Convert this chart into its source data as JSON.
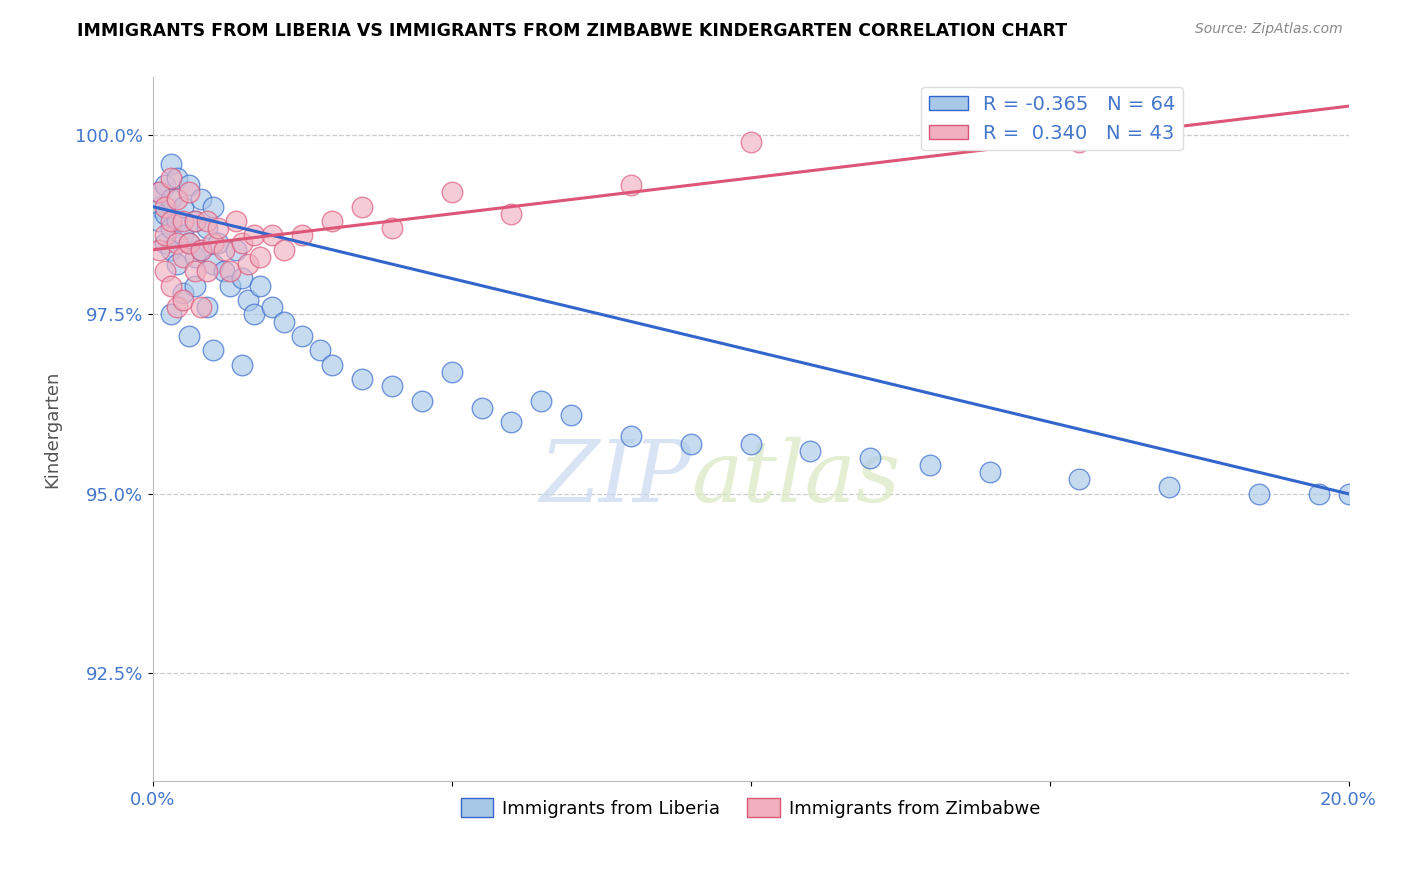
{
  "title": "IMMIGRANTS FROM LIBERIA VS IMMIGRANTS FROM ZIMBABWE KINDERGARTEN CORRELATION CHART",
  "source": "Source: ZipAtlas.com",
  "ylabel": "Kindergarten",
  "xlim": [
    0.0,
    0.2
  ],
  "ylim": [
    0.91,
    1.008
  ],
  "yticks": [
    0.925,
    0.95,
    0.975,
    1.0
  ],
  "yticklabels": [
    "92.5%",
    "95.0%",
    "97.5%",
    "100.0%"
  ],
  "xticks": [
    0.0,
    0.05,
    0.1,
    0.15,
    0.2
  ],
  "xticklabels": [
    "0.0%",
    "",
    "",
    "",
    "20.0%"
  ],
  "legend_r_liberia": "-0.365",
  "legend_n_liberia": "64",
  "legend_r_zimbabwe": "0.340",
  "legend_n_zimbabwe": "43",
  "color_liberia": "#a8c8e8",
  "color_zimbabwe": "#f0b0c0",
  "color_line_liberia": "#3366cc",
  "color_line_zimbabwe": "#dd5577",
  "watermark_zip": "ZIP",
  "watermark_atlas": "atlas",
  "background_color": "#ffffff",
  "grid_color": "#cccccc",
  "liberia_line_x": [
    0.0,
    0.2
  ],
  "liberia_line_y": [
    0.99,
    0.95
  ],
  "zimbabwe_line_x": [
    0.0,
    0.2
  ],
  "zimbabwe_line_y": [
    0.984,
    1.004
  ],
  "liberia_x": [
    0.001,
    0.001,
    0.001,
    0.002,
    0.002,
    0.002,
    0.003,
    0.003,
    0.003,
    0.003,
    0.004,
    0.004,
    0.004,
    0.005,
    0.005,
    0.005,
    0.006,
    0.006,
    0.007,
    0.007,
    0.007,
    0.008,
    0.008,
    0.009,
    0.009,
    0.01,
    0.01,
    0.011,
    0.012,
    0.013,
    0.014,
    0.015,
    0.016,
    0.017,
    0.018,
    0.02,
    0.022,
    0.025,
    0.028,
    0.03,
    0.035,
    0.04,
    0.045,
    0.05,
    0.055,
    0.06,
    0.065,
    0.07,
    0.08,
    0.09,
    0.1,
    0.11,
    0.12,
    0.13,
    0.14,
    0.155,
    0.17,
    0.185,
    0.195,
    0.2,
    0.003,
    0.006,
    0.01,
    0.015
  ],
  "liberia_y": [
    0.99,
    0.988,
    0.992,
    0.989,
    0.985,
    0.993,
    0.987,
    0.991,
    0.984,
    0.996,
    0.988,
    0.982,
    0.994,
    0.986,
    0.99,
    0.978,
    0.985,
    0.993,
    0.983,
    0.988,
    0.979,
    0.984,
    0.991,
    0.987,
    0.976,
    0.982,
    0.99,
    0.985,
    0.981,
    0.979,
    0.984,
    0.98,
    0.977,
    0.975,
    0.979,
    0.976,
    0.974,
    0.972,
    0.97,
    0.968,
    0.966,
    0.965,
    0.963,
    0.967,
    0.962,
    0.96,
    0.963,
    0.961,
    0.958,
    0.957,
    0.957,
    0.956,
    0.955,
    0.954,
    0.953,
    0.952,
    0.951,
    0.95,
    0.95,
    0.95,
    0.975,
    0.972,
    0.97,
    0.968
  ],
  "zimbabwe_x": [
    0.001,
    0.001,
    0.002,
    0.002,
    0.002,
    0.003,
    0.003,
    0.003,
    0.004,
    0.004,
    0.004,
    0.005,
    0.005,
    0.005,
    0.006,
    0.006,
    0.007,
    0.007,
    0.008,
    0.008,
    0.009,
    0.009,
    0.01,
    0.011,
    0.012,
    0.013,
    0.014,
    0.015,
    0.016,
    0.017,
    0.018,
    0.02,
    0.022,
    0.025,
    0.03,
    0.035,
    0.04,
    0.05,
    0.06,
    0.08,
    0.1,
    0.155,
    0.16
  ],
  "zimbabwe_y": [
    0.984,
    0.992,
    0.986,
    0.99,
    0.981,
    0.988,
    0.994,
    0.979,
    0.985,
    0.991,
    0.976,
    0.988,
    0.983,
    0.977,
    0.985,
    0.992,
    0.981,
    0.988,
    0.984,
    0.976,
    0.988,
    0.981,
    0.985,
    0.987,
    0.984,
    0.981,
    0.988,
    0.985,
    0.982,
    0.986,
    0.983,
    0.986,
    0.984,
    0.986,
    0.988,
    0.99,
    0.987,
    0.992,
    0.989,
    0.993,
    0.999,
    0.999,
    1.0
  ]
}
